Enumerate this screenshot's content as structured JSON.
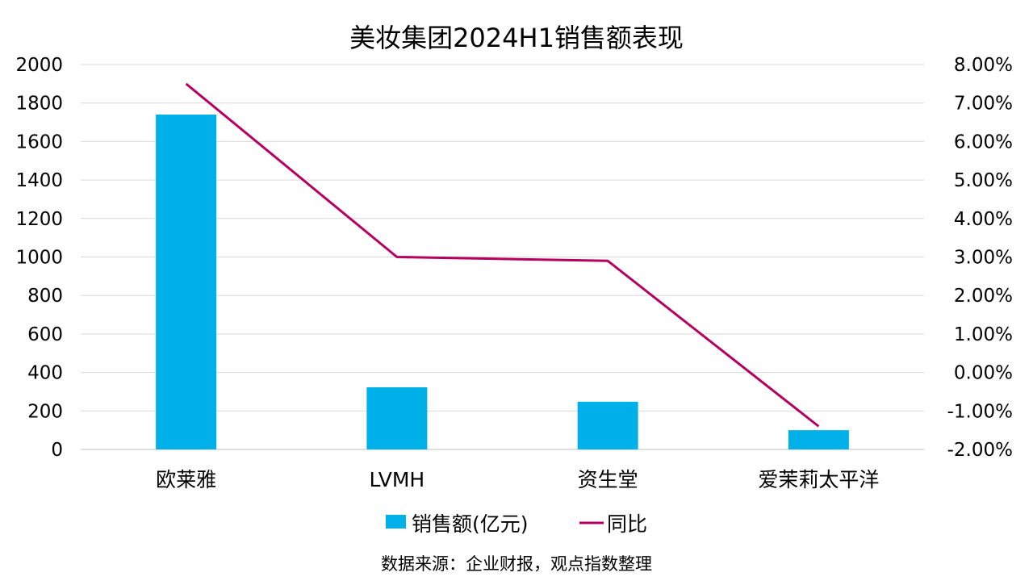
{
  "chart_data": {
    "type": "bar",
    "title": "美妆集团2024H1销售额表现",
    "categories": [
      "欧莱雅",
      "LVMH",
      "资生堂",
      "爱茉莉太平洋"
    ],
    "series": [
      {
        "name": "销售额(亿元)",
        "type": "bar",
        "axis": "left",
        "color": "#00B0E8",
        "values": [
          1740,
          323,
          248,
          100
        ]
      },
      {
        "name": "同比",
        "type": "line",
        "axis": "right",
        "color": "#B5005F",
        "values": [
          0.075,
          0.03,
          0.029,
          -0.014
        ]
      }
    ],
    "y_left": {
      "min": 0,
      "max": 2000,
      "ticks": [
        "0",
        "200",
        "400",
        "600",
        "800",
        "1000",
        "1200",
        "1400",
        "1600",
        "1800",
        "2000"
      ]
    },
    "y_right": {
      "min": -0.02,
      "max": 0.08,
      "ticks": [
        "-2.00%",
        "-1.00%",
        "0.00%",
        "1.00%",
        "2.00%",
        "3.00%",
        "4.00%",
        "5.00%",
        "6.00%",
        "7.00%",
        "8.00%"
      ]
    },
    "grid": true,
    "legend_position": "bottom",
    "source": "数据来源：企业财报，观点指数整理"
  }
}
